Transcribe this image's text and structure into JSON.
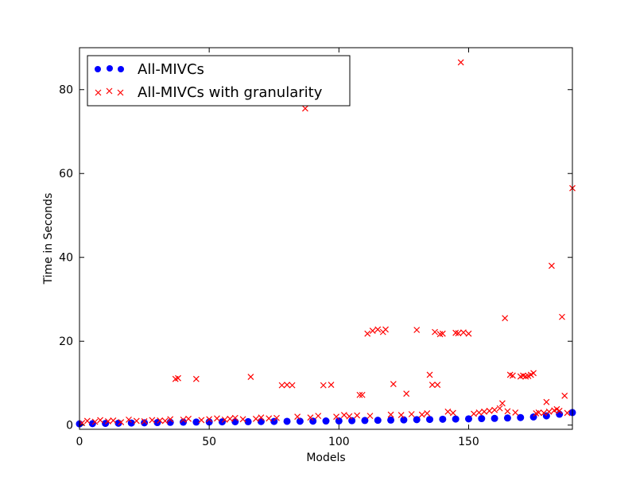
{
  "chart_data": {
    "type": "scatter",
    "title": "",
    "xlabel": "Models",
    "ylabel": "Time in Seconds",
    "xlim": [
      0,
      190
    ],
    "ylim": [
      -1,
      90
    ],
    "xticks": [
      0,
      50,
      100,
      150
    ],
    "yticks": [
      0,
      20,
      40,
      60,
      80
    ],
    "grid": false,
    "legend_position": "top-left",
    "series": [
      {
        "name": "All-MIVCs",
        "marker": "circle",
        "color": "#0000ff",
        "x": [
          0,
          5,
          10,
          15,
          20,
          25,
          30,
          35,
          40,
          45,
          50,
          55,
          60,
          65,
          70,
          75,
          80,
          85,
          90,
          95,
          100,
          105,
          110,
          115,
          120,
          125,
          130,
          135,
          140,
          145,
          150,
          155,
          160,
          165,
          170,
          175,
          180,
          185,
          190
        ],
        "y": [
          0.3,
          0.35,
          0.4,
          0.45,
          0.5,
          0.55,
          0.6,
          0.65,
          0.7,
          0.72,
          0.75,
          0.78,
          0.8,
          0.82,
          0.85,
          0.88,
          0.9,
          0.92,
          0.95,
          0.98,
          1.0,
          1.05,
          1.1,
          1.15,
          1.2,
          1.25,
          1.3,
          1.35,
          1.4,
          1.45,
          1.5,
          1.55,
          1.6,
          1.7,
          1.8,
          1.95,
          2.2,
          2.6,
          3.0
        ]
      },
      {
        "name": "All-MIVCs with granularity",
        "marker": "x",
        "color": "#ff0000",
        "x": [
          1,
          3,
          6,
          8,
          11,
          13,
          16,
          19,
          22,
          25,
          28,
          31,
          33,
          35,
          37,
          38,
          40,
          42,
          45,
          47,
          50,
          53,
          56,
          58,
          60,
          63,
          66,
          68,
          70,
          73,
          76,
          78,
          80,
          82,
          84,
          87,
          89,
          92,
          94,
          97,
          99,
          102,
          104,
          107,
          108,
          109,
          111,
          112,
          113,
          115,
          117,
          118,
          120,
          121,
          124,
          126,
          128,
          130,
          132,
          134,
          135,
          136,
          137,
          138,
          139,
          140,
          142,
          144,
          145,
          146,
          147,
          148,
          150,
          152,
          154,
          156,
          158,
          160,
          162,
          163,
          164,
          165,
          166,
          167,
          168,
          170,
          171,
          172,
          173,
          174,
          175,
          176,
          177,
          179,
          180,
          181,
          182,
          183,
          184,
          185,
          186,
          187,
          188,
          190
        ],
        "y": [
          0.5,
          1.0,
          0.8,
          1.2,
          0.9,
          1.1,
          0.7,
          1.3,
          1.0,
          0.9,
          1.2,
          1.1,
          1.0,
          1.4,
          11.0,
          11.2,
          1.3,
          1.5,
          11.0,
          1.2,
          1.4,
          1.6,
          1.3,
          1.5,
          1.7,
          1.4,
          11.5,
          1.5,
          1.8,
          1.6,
          1.7,
          9.5,
          9.6,
          9.5,
          2.0,
          75.5,
          1.8,
          2.2,
          9.5,
          9.6,
          2.0,
          2.4,
          2.1,
          2.3,
          7.2,
          7.2,
          21.8,
          2.2,
          22.5,
          22.8,
          22.2,
          22.8,
          2.5,
          9.8,
          2.4,
          7.5,
          2.6,
          22.7,
          2.5,
          2.8,
          12.0,
          9.6,
          22.2,
          9.6,
          21.7,
          21.8,
          3.2,
          2.9,
          22.0,
          21.9,
          86.5,
          22.1,
          21.8,
          2.7,
          3.0,
          3.2,
          3.4,
          3.6,
          4.0,
          5.2,
          25.5,
          3.3,
          12.0,
          11.8,
          3.0,
          11.6,
          11.8,
          11.6,
          11.7,
          12.0,
          12.4,
          2.8,
          3.0,
          2.9,
          5.5,
          3.2,
          38.0,
          3.5,
          3.8,
          3.4,
          25.8,
          7.0,
          2.9,
          56.5
        ]
      }
    ]
  }
}
